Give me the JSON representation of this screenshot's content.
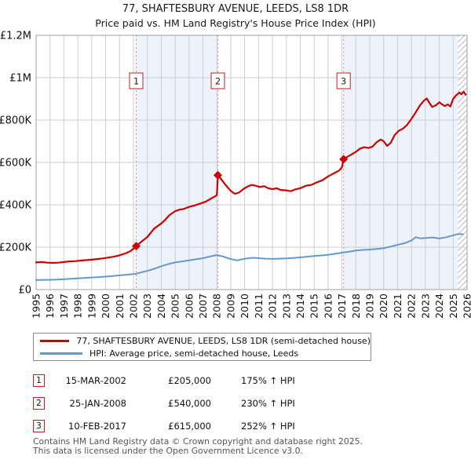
{
  "title": "77, SHAFTESBURY AVENUE, LEEDS, LS8 1DR",
  "subtitle": "Price paid vs. HM Land Registry's House Price Index (HPI)",
  "chart_data": {
    "type": "line",
    "x_range": [
      1995,
      2026
    ],
    "ylim_k": [
      0,
      1200
    ],
    "grid": true,
    "legend_position": "bottom",
    "x_ticks": [
      1995,
      1996,
      1997,
      1998,
      1999,
      2000,
      2001,
      2002,
      2003,
      2004,
      2005,
      2006,
      2007,
      2008,
      2009,
      2010,
      2011,
      2012,
      2013,
      2014,
      2015,
      2016,
      2017,
      2018,
      2019,
      2020,
      2021,
      2022,
      2023,
      2024,
      2025,
      2026
    ],
    "y_ticks": [
      {
        "label": "£0",
        "value_k": 0
      },
      {
        "label": "£200K",
        "value_k": 200
      },
      {
        "label": "£400K",
        "value_k": 400
      },
      {
        "label": "£600K",
        "value_k": 600
      },
      {
        "label": "£800K",
        "value_k": 800
      },
      {
        "label": "£1M",
        "value_k": 1000
      },
      {
        "label": "£1.2M",
        "value_k": 1200
      }
    ],
    "colors": {
      "property": "#cc0000",
      "hpi": "#6699cc",
      "band": "#eef2fb",
      "grid": "#cdcdd4",
      "sale_line": "#ee8888",
      "border": "#9aa0a6",
      "marker_box_border": "#bb2222"
    },
    "bands": [
      [
        2002.2,
        2008.07
      ],
      [
        2017.12,
        2026.0
      ]
    ],
    "hatch_range": [
      2025.35,
      2026.0
    ],
    "sale_markers": [
      {
        "label": "1",
        "year": 2002.2,
        "price_k": 205,
        "date": "15-MAR-2002"
      },
      {
        "label": "2",
        "year": 2008.07,
        "price_k": 540,
        "date": "25-JAN-2008"
      },
      {
        "label": "3",
        "year": 2017.12,
        "price_k": 615,
        "date": "10-FEB-2017"
      }
    ],
    "series": [
      {
        "id": "property-price-line",
        "name": "77, SHAFTESBURY AVENUE, LEEDS, LS8 1DR (semi-detached house)",
        "color": "#cc0000",
        "stroke_width": 2.2,
        "points": [
          [
            1995.0,
            128
          ],
          [
            1995.4,
            130
          ],
          [
            1995.8,
            127
          ],
          [
            1996.2,
            126
          ],
          [
            1996.6,
            127
          ],
          [
            1997.0,
            130
          ],
          [
            1997.4,
            133
          ],
          [
            1997.8,
            134
          ],
          [
            1998.2,
            137
          ],
          [
            1998.6,
            139
          ],
          [
            1999.0,
            141
          ],
          [
            1999.4,
            144
          ],
          [
            1999.8,
            147
          ],
          [
            2000.2,
            151
          ],
          [
            2000.6,
            155
          ],
          [
            2001.0,
            162
          ],
          [
            2001.4,
            170
          ],
          [
            2001.8,
            182
          ],
          [
            2002.05,
            196
          ],
          [
            2002.2,
            205
          ],
          [
            2002.5,
            222
          ],
          [
            2003.0,
            248
          ],
          [
            2003.5,
            288
          ],
          [
            2004.0,
            312
          ],
          [
            2004.3,
            330
          ],
          [
            2004.6,
            352
          ],
          [
            2005.0,
            370
          ],
          [
            2005.3,
            377
          ],
          [
            2005.6,
            380
          ],
          [
            2006.0,
            390
          ],
          [
            2006.4,
            397
          ],
          [
            2006.8,
            406
          ],
          [
            2007.2,
            415
          ],
          [
            2007.6,
            430
          ],
          [
            2008.0,
            445
          ],
          [
            2008.08,
            540
          ],
          [
            2008.3,
            522
          ],
          [
            2008.6,
            496
          ],
          [
            2009.0,
            466
          ],
          [
            2009.3,
            452
          ],
          [
            2009.6,
            458
          ],
          [
            2009.9,
            474
          ],
          [
            2010.2,
            486
          ],
          [
            2010.5,
            494
          ],
          [
            2010.8,
            490
          ],
          [
            2011.1,
            484
          ],
          [
            2011.4,
            488
          ],
          [
            2011.7,
            478
          ],
          [
            2012.0,
            474
          ],
          [
            2012.3,
            478
          ],
          [
            2012.6,
            470
          ],
          [
            2013.0,
            468
          ],
          [
            2013.3,
            464
          ],
          [
            2013.6,
            472
          ],
          [
            2014.0,
            478
          ],
          [
            2014.4,
            490
          ],
          [
            2014.8,
            494
          ],
          [
            2015.2,
            506
          ],
          [
            2015.6,
            516
          ],
          [
            2016.0,
            534
          ],
          [
            2016.4,
            548
          ],
          [
            2016.8,
            562
          ],
          [
            2017.0,
            577
          ],
          [
            2017.12,
            615
          ],
          [
            2017.4,
            627
          ],
          [
            2017.7,
            638
          ],
          [
            2018.0,
            650
          ],
          [
            2018.3,
            665
          ],
          [
            2018.6,
            672
          ],
          [
            2018.9,
            668
          ],
          [
            2019.2,
            675
          ],
          [
            2019.5,
            696
          ],
          [
            2019.8,
            708
          ],
          [
            2020.0,
            700
          ],
          [
            2020.25,
            678
          ],
          [
            2020.5,
            692
          ],
          [
            2020.8,
            730
          ],
          [
            2021.1,
            750
          ],
          [
            2021.4,
            760
          ],
          [
            2021.7,
            778
          ],
          [
            2022.0,
            806
          ],
          [
            2022.3,
            836
          ],
          [
            2022.6,
            868
          ],
          [
            2022.9,
            892
          ],
          [
            2023.1,
            902
          ],
          [
            2023.3,
            880
          ],
          [
            2023.5,
            862
          ],
          [
            2023.8,
            872
          ],
          [
            2024.0,
            884
          ],
          [
            2024.2,
            874
          ],
          [
            2024.4,
            866
          ],
          [
            2024.6,
            874
          ],
          [
            2024.8,
            864
          ],
          [
            2025.0,
            900
          ],
          [
            2025.2,
            916
          ],
          [
            2025.45,
            930
          ],
          [
            2025.6,
            922
          ],
          [
            2025.75,
            934
          ],
          [
            2025.9,
            920
          ]
        ]
      },
      {
        "id": "hpi-line",
        "name": "HPI: Average price, semi-detached house, Leeds",
        "color": "#6699cc",
        "stroke_width": 2,
        "points": [
          [
            1995.0,
            45
          ],
          [
            1995.5,
            46
          ],
          [
            1996.0,
            46
          ],
          [
            1996.5,
            47
          ],
          [
            1997.0,
            49
          ],
          [
            1997.5,
            51
          ],
          [
            1998.0,
            53
          ],
          [
            1998.5,
            55
          ],
          [
            1999.0,
            57
          ],
          [
            1999.5,
            59
          ],
          [
            2000.0,
            61
          ],
          [
            2000.5,
            64
          ],
          [
            2001.0,
            67
          ],
          [
            2001.5,
            70
          ],
          [
            2002.0,
            73
          ],
          [
            2002.2,
            75
          ],
          [
            2002.6,
            82
          ],
          [
            2003.0,
            88
          ],
          [
            2003.5,
            98
          ],
          [
            2004.0,
            110
          ],
          [
            2004.5,
            120
          ],
          [
            2005.0,
            128
          ],
          [
            2005.5,
            133
          ],
          [
            2006.0,
            138
          ],
          [
            2006.5,
            143
          ],
          [
            2007.0,
            148
          ],
          [
            2007.5,
            156
          ],
          [
            2008.0,
            163
          ],
          [
            2008.4,
            157
          ],
          [
            2008.8,
            148
          ],
          [
            2009.2,
            141
          ],
          [
            2009.5,
            138
          ],
          [
            2009.8,
            143
          ],
          [
            2010.2,
            147
          ],
          [
            2010.6,
            150
          ],
          [
            2011.0,
            148
          ],
          [
            2011.5,
            146
          ],
          [
            2012.0,
            145
          ],
          [
            2012.5,
            146
          ],
          [
            2013.0,
            147
          ],
          [
            2013.5,
            149
          ],
          [
            2014.0,
            152
          ],
          [
            2014.5,
            155
          ],
          [
            2015.0,
            158
          ],
          [
            2015.5,
            161
          ],
          [
            2016.0,
            164
          ],
          [
            2016.5,
            169
          ],
          [
            2017.0,
            174
          ],
          [
            2017.5,
            179
          ],
          [
            2018.0,
            184
          ],
          [
            2018.5,
            187
          ],
          [
            2019.0,
            189
          ],
          [
            2019.5,
            192
          ],
          [
            2020.0,
            195
          ],
          [
            2020.5,
            203
          ],
          [
            2021.0,
            211
          ],
          [
            2021.5,
            219
          ],
          [
            2022.0,
            232
          ],
          [
            2022.3,
            247
          ],
          [
            2022.6,
            242
          ],
          [
            2023.0,
            243
          ],
          [
            2023.5,
            246
          ],
          [
            2024.0,
            241
          ],
          [
            2024.5,
            247
          ],
          [
            2025.0,
            256
          ],
          [
            2025.3,
            262
          ],
          [
            2025.7,
            261
          ]
        ]
      }
    ]
  },
  "legend": [
    {
      "id": "property",
      "label": "77, SHAFTESBURY AVENUE, LEEDS, LS8 1DR (semi-detached house)",
      "color": "#cc0000"
    },
    {
      "id": "hpi",
      "label": "HPI: Average price, semi-detached house, Leeds",
      "color": "#6699cc"
    }
  ],
  "transactions": [
    {
      "num": "1",
      "date": "15-MAR-2002",
      "price": "£205,000",
      "hpi": "175% ↑ HPI"
    },
    {
      "num": "2",
      "date": "25-JAN-2008",
      "price": "£540,000",
      "hpi": "230% ↑ HPI"
    },
    {
      "num": "3",
      "date": "10-FEB-2017",
      "price": "£615,000",
      "hpi": "252% ↑ HPI"
    }
  ],
  "footer": [
    "Contains HM Land Registry data © Crown copyright and database right 2025.",
    "This data is licensed under the Open Government Licence v3.0."
  ]
}
